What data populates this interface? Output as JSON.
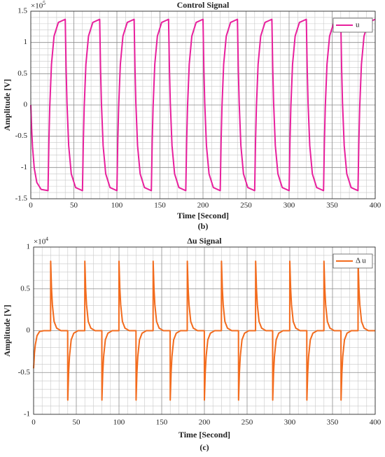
{
  "chart_data": [
    {
      "type": "line",
      "title": "Control Signal",
      "xlabel": "Time [Second]",
      "ylabel": "Amplitude [V]",
      "y_multiplier": "×10",
      "y_multiplier_exp": "5",
      "caption": "(b)",
      "xlim": [
        0,
        400
      ],
      "xticks": [
        0,
        50,
        100,
        150,
        200,
        250,
        300,
        350,
        400
      ],
      "ylim": [
        -1.5,
        1.5
      ],
      "yticks": [
        -1.5,
        -1,
        -0.5,
        0,
        0.5,
        1,
        1.5
      ],
      "grid": true,
      "minor_grid": true,
      "legend": "upper right",
      "x": [
        0,
        1,
        2,
        4,
        7,
        12,
        19.9,
        20,
        21,
        22,
        24,
        27,
        32,
        39.9,
        40,
        41,
        42,
        44,
        47,
        52,
        59.9,
        60,
        61,
        62,
        64,
        67,
        72,
        79.9,
        80,
        81,
        82,
        84,
        87,
        92,
        99.9,
        100,
        101,
        102,
        104,
        107,
        112,
        119.9,
        120,
        121,
        122,
        124,
        127,
        132,
        139.9,
        140,
        141,
        142,
        144,
        147,
        152,
        159.9,
        160,
        161,
        162,
        164,
        167,
        172,
        179.9,
        180,
        181,
        182,
        184,
        187,
        192,
        199.9,
        200,
        201,
        202,
        204,
        207,
        212,
        219.9,
        220,
        221,
        222,
        224,
        227,
        232,
        239.9,
        240,
        241,
        242,
        244,
        247,
        252,
        259.9,
        260,
        261,
        262,
        264,
        267,
        272,
        279.9,
        280,
        281,
        282,
        284,
        287,
        292,
        299.9,
        300,
        301,
        302,
        304,
        307,
        312,
        319.9,
        320,
        321,
        322,
        324,
        327,
        332,
        339.9,
        340,
        341,
        342,
        344,
        347,
        352,
        359.9,
        360,
        361,
        362,
        364,
        367,
        372,
        379.9,
        380,
        381,
        382,
        384,
        387,
        392,
        399.9,
        400
      ],
      "series": [
        {
          "name": "u",
          "color": "#e8209d",
          "values": [
            0,
            -0.39,
            -0.67,
            -1.01,
            -1.24,
            -1.35,
            -1.37,
            -1.37,
            -0.59,
            -0.04,
            0.65,
            1.1,
            1.32,
            1.37,
            1.37,
            0.59,
            0.04,
            -0.65,
            -1.1,
            -1.32,
            -1.37,
            -1.37,
            -0.59,
            -0.04,
            0.65,
            1.1,
            1.32,
            1.37,
            1.37,
            0.59,
            0.04,
            -0.65,
            -1.1,
            -1.32,
            -1.37,
            -1.37,
            -0.59,
            -0.04,
            0.65,
            1.1,
            1.32,
            1.37,
            1.37,
            0.59,
            0.04,
            -0.65,
            -1.1,
            -1.32,
            -1.37,
            -1.37,
            -0.59,
            -0.04,
            0.65,
            1.1,
            1.32,
            1.37,
            1.37,
            0.59,
            0.04,
            -0.65,
            -1.1,
            -1.32,
            -1.37,
            -1.37,
            -0.59,
            -0.04,
            0.65,
            1.1,
            1.32,
            1.37,
            1.37,
            0.59,
            0.04,
            -0.65,
            -1.1,
            -1.32,
            -1.37,
            -1.37,
            -0.59,
            -0.04,
            0.65,
            1.1,
            1.32,
            1.37,
            1.37,
            0.59,
            0.04,
            -0.65,
            -1.1,
            -1.32,
            -1.37,
            -1.37,
            -0.59,
            -0.04,
            0.65,
            1.1,
            1.32,
            1.37,
            1.37,
            0.59,
            0.04,
            -0.65,
            -1.1,
            -1.32,
            -1.37,
            -1.37,
            -0.59,
            -0.04,
            0.65,
            1.1,
            1.32,
            1.37,
            1.37,
            0.59,
            0.04,
            -0.65,
            -1.1,
            -1.32,
            -1.37,
            -1.37,
            -0.59,
            -0.04,
            0.65,
            1.1,
            1.32,
            1.37,
            1.37,
            0.59,
            0.04,
            -0.65,
            -1.1,
            -1.32,
            -1.37,
            -1.37,
            -0.59,
            -0.04,
            0.65,
            1.1,
            1.32,
            1.37,
            1.37
          ]
        }
      ]
    },
    {
      "type": "line",
      "title": "Δu Signal",
      "xlabel": "Time [Second]",
      "ylabel": "Amplitude [V]",
      "y_multiplier": "×10",
      "y_multiplier_exp": "4",
      "caption": "(c)",
      "xlim": [
        0,
        400
      ],
      "xticks": [
        0,
        50,
        100,
        150,
        200,
        250,
        300,
        350,
        400
      ],
      "ylim": [
        -1,
        1
      ],
      "yticks": [
        -1,
        -0.5,
        0,
        0.5,
        1
      ],
      "grid": true,
      "minor_grid": true,
      "legend": "upper right",
      "x": [
        0,
        1,
        2,
        4,
        7,
        12,
        19.9,
        20,
        21,
        22,
        24,
        27,
        32,
        39.9,
        40,
        41,
        42,
        44,
        47,
        52,
        59.9,
        60,
        61,
        62,
        64,
        67,
        72,
        79.9,
        80,
        81,
        82,
        84,
        87,
        92,
        99.9,
        100,
        101,
        102,
        104,
        107,
        112,
        119.9,
        120,
        121,
        122,
        124,
        127,
        132,
        139.9,
        140,
        141,
        142,
        144,
        147,
        152,
        159.9,
        160,
        161,
        162,
        164,
        167,
        172,
        179.9,
        180,
        181,
        182,
        184,
        187,
        192,
        199.9,
        200,
        201,
        202,
        204,
        207,
        212,
        219.9,
        220,
        221,
        222,
        224,
        227,
        232,
        239.9,
        240,
        241,
        242,
        244,
        247,
        252,
        259.9,
        260,
        261,
        262,
        264,
        267,
        272,
        279.9,
        280,
        281,
        282,
        284,
        287,
        292,
        299.9,
        300,
        301,
        302,
        304,
        307,
        312,
        319.9,
        320,
        321,
        322,
        324,
        327,
        332,
        339.9,
        340,
        341,
        342,
        344,
        347,
        352,
        359.9,
        360,
        361,
        362,
        364,
        367,
        372,
        379.9,
        380,
        381,
        382,
        384,
        387,
        392,
        399.9,
        400
      ],
      "series": [
        {
          "name": "Δ u",
          "color": "#f26b1d",
          "values": [
            -0.45,
            -0.27,
            -0.17,
            -0.06,
            -0.01,
            0,
            0,
            0.83,
            0.5,
            0.31,
            0.11,
            0.03,
            0,
            0,
            -0.83,
            -0.5,
            -0.31,
            -0.11,
            -0.03,
            0,
            0,
            0.83,
            0.5,
            0.31,
            0.11,
            0.03,
            0,
            0,
            -0.83,
            -0.5,
            -0.31,
            -0.11,
            -0.03,
            0,
            0,
            0.83,
            0.5,
            0.31,
            0.11,
            0.03,
            0,
            0,
            -0.83,
            -0.5,
            -0.31,
            -0.11,
            -0.03,
            0,
            0,
            0.83,
            0.5,
            0.31,
            0.11,
            0.03,
            0,
            0,
            -0.83,
            -0.5,
            -0.31,
            -0.11,
            -0.03,
            0,
            0,
            0.83,
            0.5,
            0.31,
            0.11,
            0.03,
            0,
            0,
            -0.83,
            -0.5,
            -0.31,
            -0.11,
            -0.03,
            0,
            0,
            0.83,
            0.5,
            0.31,
            0.11,
            0.03,
            0,
            0,
            -0.83,
            -0.5,
            -0.31,
            -0.11,
            -0.03,
            0,
            0,
            0.83,
            0.5,
            0.31,
            0.11,
            0.03,
            0,
            0,
            -0.83,
            -0.5,
            -0.31,
            -0.11,
            -0.03,
            0,
            0,
            0.83,
            0.5,
            0.31,
            0.11,
            0.03,
            0,
            0,
            -0.83,
            -0.5,
            -0.31,
            -0.11,
            -0.03,
            0,
            0,
            0.83,
            0.5,
            0.31,
            0.11,
            0.03,
            0,
            0,
            -0.83,
            -0.5,
            -0.31,
            -0.11,
            -0.03,
            0,
            0,
            0.83,
            0.5,
            0.31,
            0.11,
            0.03,
            0,
            0,
            0
          ]
        }
      ]
    }
  ]
}
